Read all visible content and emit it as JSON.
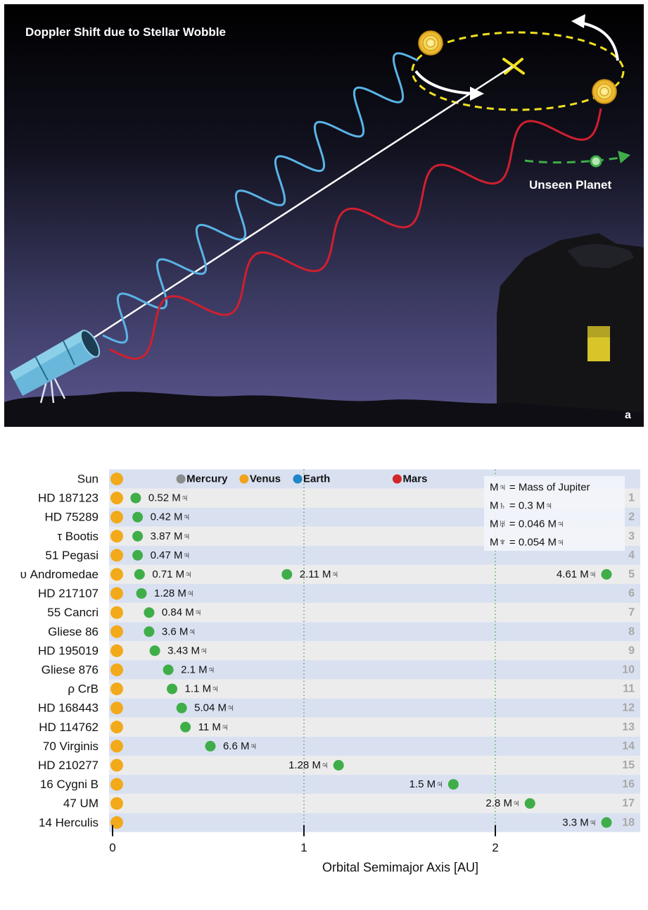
{
  "illustration": {
    "title": "Doppler Shift due to Stellar Wobble",
    "planet_label": "Unseen Planet",
    "panel_letter": "a",
    "colors": {
      "blueshift": "#5ab4e6",
      "redshift": "#d01f2e",
      "orbit": "#f0e020",
      "planet": "#3fae49",
      "sky_top": "#000000",
      "sky_bottom": "#5a5590"
    }
  },
  "chart_data": {
    "type": "scatter",
    "xlabel": "Orbital Semimajor Axis  [AU]",
    "xlim": [
      0,
      2.75
    ],
    "xticks": [
      "0",
      "1",
      "2"
    ],
    "reference_row": {
      "label": "Sun",
      "planets": [
        {
          "name": "Mercury",
          "x": 0.39,
          "color": "#8c8c8c"
        },
        {
          "name": "Venus",
          "x": 0.72,
          "color": "#f2a31b"
        },
        {
          "name": "Earth",
          "x": 1.0,
          "color": "#1f86c8"
        },
        {
          "name": "Mars",
          "x": 1.52,
          "color": "#d0282a"
        }
      ]
    },
    "mass_legend": [
      "M♃ = Mass of Jupiter",
      "M♄ = 0.3 M♃",
      "M♅ = 0.046 M♃",
      "M♆ = 0.054 M♃"
    ],
    "stars": [
      {
        "num": "1",
        "name": "HD 187123",
        "planets": [
          {
            "a": 0.04,
            "mass": "0.52 M♃",
            "side": "right"
          }
        ]
      },
      {
        "num": "2",
        "name": "HD 75289",
        "planets": [
          {
            "a": 0.05,
            "mass": "0.42 M♃",
            "side": "right"
          }
        ]
      },
      {
        "num": "3",
        "name": "τ Bootis",
        "planets": [
          {
            "a": 0.05,
            "mass": "3.87 M♃",
            "side": "right"
          }
        ]
      },
      {
        "num": "4",
        "name": "51 Pegasi",
        "planets": [
          {
            "a": 0.05,
            "mass": "0.47 M♃",
            "side": "right"
          }
        ]
      },
      {
        "num": "5",
        "name": "υ Andromedae",
        "planets": [
          {
            "a": 0.06,
            "mass": "0.71 M♃",
            "side": "right"
          },
          {
            "a": 0.83,
            "mass": "2.11 M♃",
            "side": "right"
          },
          {
            "a": 2.5,
            "mass": "4.61 M♃",
            "side": "left"
          }
        ]
      },
      {
        "num": "6",
        "name": "HD 217107",
        "planets": [
          {
            "a": 0.07,
            "mass": "1.28 M♃",
            "side": "right"
          }
        ]
      },
      {
        "num": "7",
        "name": "55 Cancri",
        "planets": [
          {
            "a": 0.11,
            "mass": "0.84 M♃",
            "side": "right"
          }
        ]
      },
      {
        "num": "8",
        "name": "Gliese 86",
        "planets": [
          {
            "a": 0.11,
            "mass": "3.6 M♃",
            "side": "right"
          }
        ]
      },
      {
        "num": "9",
        "name": "HD 195019",
        "planets": [
          {
            "a": 0.14,
            "mass": "3.43 M♃",
            "side": "right"
          }
        ]
      },
      {
        "num": "10",
        "name": "Gliese 876",
        "planets": [
          {
            "a": 0.21,
            "mass": "2.1 M♃",
            "side": "right"
          }
        ]
      },
      {
        "num": "11",
        "name": "ρ CrB",
        "planets": [
          {
            "a": 0.23,
            "mass": "1.1 M♃",
            "side": "right"
          }
        ]
      },
      {
        "num": "12",
        "name": "HD 168443",
        "planets": [
          {
            "a": 0.28,
            "mass": "5.04 M♃",
            "side": "right"
          }
        ]
      },
      {
        "num": "13",
        "name": "HD 114762",
        "planets": [
          {
            "a": 0.3,
            "mass": "11 M♃",
            "side": "right"
          }
        ]
      },
      {
        "num": "14",
        "name": "70 Virginis",
        "planets": [
          {
            "a": 0.43,
            "mass": "6.6 M♃",
            "side": "right"
          }
        ]
      },
      {
        "num": "15",
        "name": "HD 210277",
        "planets": [
          {
            "a": 1.1,
            "mass": "1.28 M♃",
            "side": "left"
          }
        ]
      },
      {
        "num": "16",
        "name": "16 Cygni B",
        "planets": [
          {
            "a": 1.7,
            "mass": "1.5 M♃",
            "side": "left"
          }
        ]
      },
      {
        "num": "17",
        "name": "47 UM",
        "planets": [
          {
            "a": 2.1,
            "mass": "2.8 M♃",
            "side": "left"
          }
        ]
      },
      {
        "num": "18",
        "name": "14 Herculis",
        "planets": [
          {
            "a": 2.5,
            "mass": "3.3 M♃",
            "side": "left"
          }
        ]
      }
    ],
    "colors": {
      "star": "#f2a91a",
      "planet": "#3fae49",
      "band_light": "#ececec",
      "band_blue": "#d9e1f1",
      "gridline": "#3a9a3a",
      "row_number": "#a8a8a8"
    }
  }
}
